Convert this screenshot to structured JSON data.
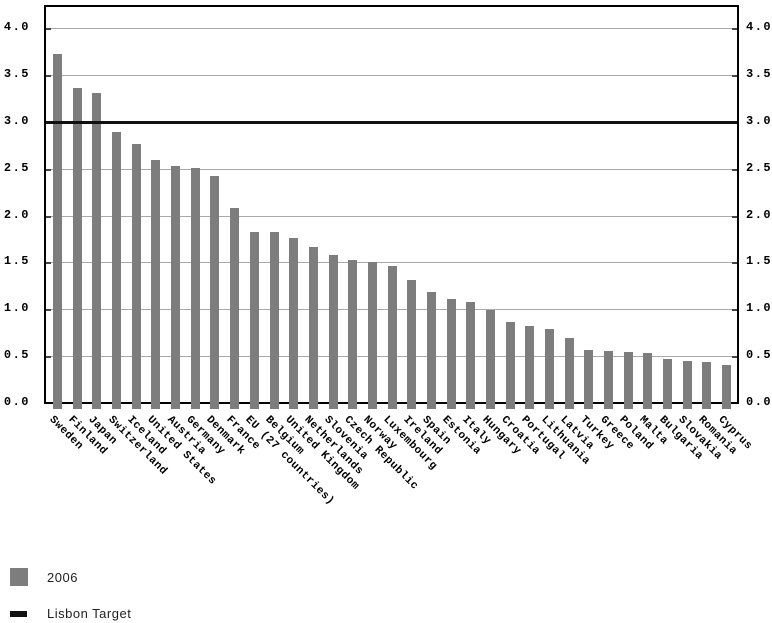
{
  "chart_data": {
    "type": "bar",
    "categories": [
      "Sweden",
      "Finland",
      "Japan",
      "Switzerland",
      "Iceland",
      "United States",
      "Austria",
      "Germany",
      "Denmark",
      "France",
      "EU (27 countries)",
      "Belgium",
      "United Kingdom",
      "Netherlands",
      "Slovenia",
      "Czech Republic",
      "Norway",
      "Luxembourg",
      "Ireland",
      "Spain",
      "Estonia",
      "Italy",
      "Hungary",
      "Croatia",
      "Portugal",
      "Lithuania",
      "Latvia",
      "Turkey",
      "Greece",
      "Poland",
      "Malta",
      "Bulgaria",
      "Slovakia",
      "Romania",
      "Cyprus"
    ],
    "series": [
      {
        "name": "2006",
        "values": [
          3.73,
          3.37,
          3.32,
          2.9,
          2.77,
          2.6,
          2.54,
          2.52,
          2.43,
          2.09,
          1.84,
          1.83,
          1.77,
          1.67,
          1.59,
          1.54,
          1.52,
          1.47,
          1.32,
          1.2,
          1.12,
          1.09,
          1.0,
          0.87,
          0.83,
          0.8,
          0.7,
          0.58,
          0.57,
          0.56,
          0.54,
          0.48,
          0.46,
          0.45,
          0.42
        ]
      }
    ],
    "target_line": {
      "label": "Lisbon Target",
      "value": 3.0
    },
    "y_axis": {
      "min": 0.0,
      "max": 4.25,
      "tick_step": 0.5,
      "tick_labels": [
        "4.0",
        "3.5",
        "3.0",
        "2.5",
        "2.0",
        "1.5",
        "1.0",
        "0.5",
        "0.0"
      ],
      "sides": [
        "left",
        "right"
      ]
    },
    "x_label_rotation_deg": 45,
    "grid": true,
    "legend_position": "bottom-left",
    "colors": {
      "bar": "#7d7d7d",
      "gridline": "#a9a9a9",
      "target_line": "#111111",
      "frame": "#000000",
      "text": "#000000",
      "background": "#ffffff"
    }
  },
  "legend": {
    "items": [
      {
        "label": "2006",
        "swatch": "gray-square"
      },
      {
        "label": "Lisbon Target",
        "swatch": "black-dash"
      }
    ]
  }
}
